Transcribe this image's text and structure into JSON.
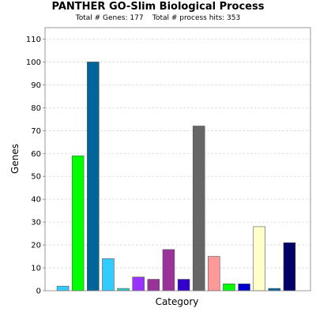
{
  "chart_data": {
    "type": "bar",
    "title": "PANTHER GO-Slim Biological Process",
    "subtitle": "Total # Genes: 177    Total # process hits: 353",
    "xlabel": "Category",
    "ylabel": "Genes",
    "ylim": [
      0,
      115
    ],
    "yticks": [
      0,
      10,
      20,
      30,
      40,
      50,
      60,
      70,
      80,
      90,
      100,
      110
    ],
    "grid": true,
    "values": [
      2,
      59,
      100,
      14,
      1,
      6,
      5,
      18,
      5,
      72,
      15,
      3,
      3,
      28,
      1,
      21
    ],
    "colors": [
      "#33ccff",
      "#00ff00",
      "#006699",
      "#33ccff",
      "#33cccc",
      "#9933ff",
      "#993399",
      "#993399",
      "#3300cc",
      "#666666",
      "#ff9999",
      "#00ff00",
      "#0000cc",
      "#ffffcc",
      "#006699",
      "#000066"
    ]
  }
}
